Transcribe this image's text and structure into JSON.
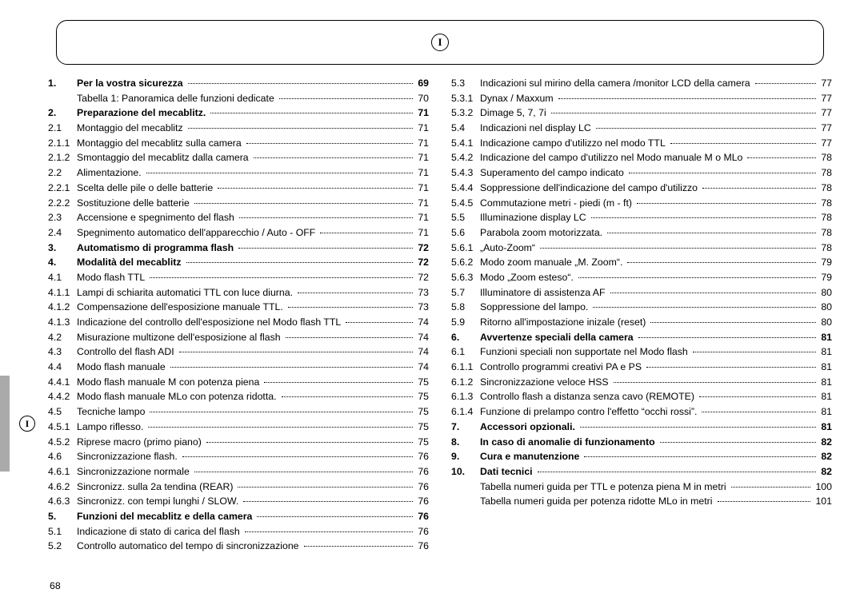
{
  "header_symbol": "I",
  "side_symbol": "I",
  "page_number": "68",
  "left": [
    {
      "n": "1.",
      "t": "Per la vostra sicurezza",
      "p": "69",
      "b": true
    },
    {
      "n": "",
      "t": "Tabella 1: Panoramica delle funzioni dedicate",
      "p": "70"
    },
    {
      "n": "2.",
      "t": "Preparazione del mecablitz.",
      "p": "71",
      "b": true
    },
    {
      "n": "2.1",
      "t": "Montaggio del mecablitz",
      "p": "71"
    },
    {
      "n": "2.1.1",
      "t": "Montaggio del mecablitz sulla camera",
      "p": "71"
    },
    {
      "n": "2.1.2",
      "t": "Smontaggio del mecablitz dalla camera",
      "p": "71"
    },
    {
      "n": "2.2",
      "t": "Alimentazione.",
      "p": "71"
    },
    {
      "n": "2.2.1",
      "t": "Scelta delle pile o delle batterie",
      "p": "71"
    },
    {
      "n": "2.2.2",
      "t": "Sostituzione delle batterie",
      "p": "71"
    },
    {
      "n": "2.3",
      "t": "Accensione e spegnimento del flash",
      "p": "71"
    },
    {
      "n": "2.4",
      "t": "Spegnimento automatico dell'apparecchio / Auto - OFF",
      "p": "71"
    },
    {
      "n": "3.",
      "t": "Automatismo di programma flash",
      "p": "72",
      "b": true
    },
    {
      "n": "4.",
      "t": "Modalità del mecablitz",
      "p": "72",
      "b": true
    },
    {
      "n": "4.1",
      "t": "Modo flash TTL",
      "p": "72"
    },
    {
      "n": "4.1.1",
      "t": "Lampi di schiarita automatici TTL con luce diurna.",
      "p": "73"
    },
    {
      "n": "4.1.2",
      "t": "Compensazione dell'esposizione manuale TTL.",
      "p": "73"
    },
    {
      "n": "4.1.3",
      "t": "Indicazione del controllo dell'esposizione nel Modo flash TTL",
      "p": "74"
    },
    {
      "n": "4.2",
      "t": "Misurazione multizone dell'esposizione al flash",
      "p": "74"
    },
    {
      "n": "4.3",
      "t": "Controllo del flash ADI",
      "p": "74"
    },
    {
      "n": "4.4",
      "t": "Modo flash manuale",
      "p": "74"
    },
    {
      "n": "4.4.1",
      "t": "Modo flash manuale M con potenza piena",
      "p": "75"
    },
    {
      "n": "4.4.2",
      "t": "Modo flash manuale MLo con potenza ridotta.",
      "p": "75"
    },
    {
      "n": "4.5",
      "t": "Tecniche lampo",
      "p": "75"
    },
    {
      "n": "4.5.1",
      "t": "Lampo riflesso.",
      "p": "75"
    },
    {
      "n": "4.5.2",
      "t": "Riprese macro (primo piano)",
      "p": "75"
    },
    {
      "n": "4.6",
      "t": "Sincronizzazione flash.",
      "p": "76"
    },
    {
      "n": "4.6.1",
      "t": "Sincronizzazione normale",
      "p": "76"
    },
    {
      "n": "4.6.2",
      "t": "Sincronizz. sulla 2a tendina (REAR)",
      "p": "76"
    },
    {
      "n": "4.6.3",
      "t": "Sincronizz. con tempi lunghi / SLOW.",
      "p": "76"
    },
    {
      "n": "5.",
      "t": "Funzioni del mecablitz e della camera",
      "p": "76",
      "b": true
    },
    {
      "n": "5.1",
      "t": "Indicazione di stato di carica del flash",
      "p": "76"
    },
    {
      "n": "5.2",
      "t": "Controllo automatico del tempo di sincronizzazione",
      "p": "76"
    }
  ],
  "right": [
    {
      "n": "5.3",
      "t": "Indicazioni sul mirino della camera /monitor LCD della camera",
      "p": "77"
    },
    {
      "n": "5.3.1",
      "t": "Dynax / Maxxum",
      "p": "77"
    },
    {
      "n": "5.3.2",
      "t": "Dimage 5, 7, 7i",
      "p": "77"
    },
    {
      "n": "5.4",
      "t": "Indicazioni nel display LC",
      "p": "77"
    },
    {
      "n": "5.4.1",
      "t": "Indicazione campo d'utilizzo nel modo TTL",
      "p": "77"
    },
    {
      "n": "5.4.2",
      "t": "Indicazione del campo d'utilizzo nel Modo manuale M o MLo",
      "p": "78"
    },
    {
      "n": "5.4.3",
      "t": "Superamento del campo indicato",
      "p": "78"
    },
    {
      "n": "5.4.4",
      "t": "Soppressione dell'indicazione del campo d'utilizzo",
      "p": "78"
    },
    {
      "n": "5.4.5",
      "t": "Commutazione metri - piedi  (m - ft)",
      "p": "78"
    },
    {
      "n": "5.5",
      "t": "Illuminazione display LC",
      "p": "78"
    },
    {
      "n": "5.6",
      "t": "Parabola zoom motorizzata.",
      "p": "78"
    },
    {
      "n": "5.6.1",
      "t": "„Auto-Zoom“",
      "p": "78"
    },
    {
      "n": "5.6.2",
      "t": "Modo zoom manuale „M. Zoom“.",
      "p": "79"
    },
    {
      "n": "5.6.3",
      "t": "Modo „Zoom esteso“.",
      "p": "79"
    },
    {
      "n": "5.7",
      "t": "Illuminatore di assistenza AF",
      "p": "80"
    },
    {
      "n": "5.8",
      "t": "Soppressione del lampo.",
      "p": "80"
    },
    {
      "n": "5.9",
      "t": "Ritorno all'impostazione inizale (reset)",
      "p": "80"
    },
    {
      "n": "6.",
      "t": "Avvertenze speciali della camera",
      "p": "81",
      "b": true
    },
    {
      "n": "6.1",
      "t": "Funzioni speciali non supportate nel Modo flash",
      "p": "81"
    },
    {
      "n": "6.1.1",
      "t": "Controllo programmi creativi PA e PS",
      "p": "81"
    },
    {
      "n": "6.1.2",
      "t": "Sincronizzazione veloce HSS",
      "p": "81"
    },
    {
      "n": "6.1.3",
      "t": "Controllo flash a distanza senza cavo (REMOTE)",
      "p": "81"
    },
    {
      "n": "6.1.4",
      "t": "Funzione di prelampo contro l'effetto “occhi rossi”.",
      "p": "81"
    },
    {
      "n": "7.",
      "t": "Accessori opzionali.",
      "p": "81",
      "b": true
    },
    {
      "n": "8.",
      "t": "In caso di anomalie di funzionamento",
      "p": "82",
      "b": true
    },
    {
      "n": "9.",
      "t": "Cura e manutenzione",
      "p": "82",
      "b": true
    },
    {
      "n": "10.",
      "t": "Dati tecnici",
      "p": "82",
      "b": true
    },
    {
      "n": "",
      "t": "Tabella numeri guida per TTL e potenza piena M in metri",
      "p": "100"
    },
    {
      "n": "",
      "t": "Tabella numeri guida per potenza ridotte MLo in metri",
      "p": "101"
    }
  ]
}
